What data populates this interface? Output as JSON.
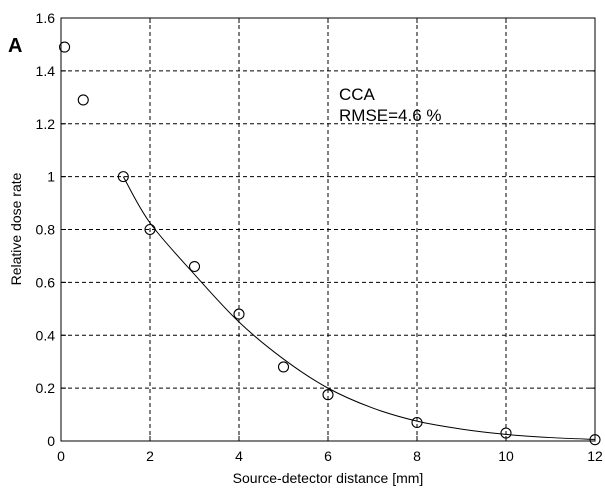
{
  "chart_data": {
    "type": "scatter",
    "panel_label": "A",
    "xlabel": "Source-detector distance [mm]",
    "ylabel": "Relative dose rate",
    "xlim": [
      0,
      12
    ],
    "ylim": [
      0,
      1.6
    ],
    "xticks": [
      0,
      2,
      4,
      6,
      8,
      10,
      12
    ],
    "yticks": [
      0,
      0.2,
      0.4,
      0.6,
      0.8,
      1,
      1.2,
      1.4,
      1.6
    ],
    "grid": true,
    "annotations": [
      "CCA",
      "RMSE=4.6 %"
    ],
    "series": [
      {
        "marker": "circle",
        "x": [
          0.08,
          0.5,
          1.4,
          2,
          3,
          4,
          5,
          6,
          8,
          10,
          12
        ],
        "y": [
          1.49,
          1.29,
          1.0,
          0.8,
          0.66,
          0.48,
          0.28,
          0.175,
          0.07,
          0.03,
          0.005
        ]
      },
      {
        "line": "solid",
        "x": [
          1.4,
          2,
          3,
          4,
          5,
          6,
          7,
          8,
          9,
          10,
          11,
          12
        ],
        "y": [
          1.0,
          0.825,
          0.63,
          0.45,
          0.31,
          0.2,
          0.125,
          0.075,
          0.045,
          0.025,
          0.013,
          0.006
        ]
      }
    ]
  }
}
